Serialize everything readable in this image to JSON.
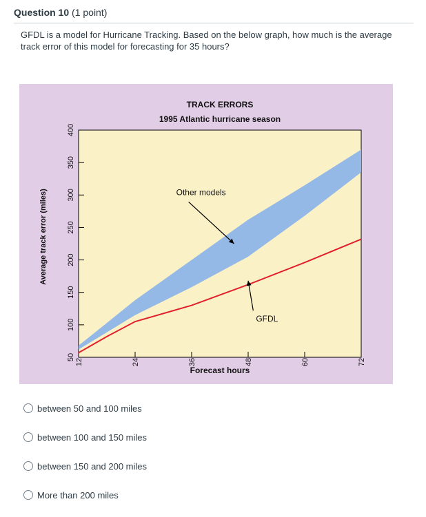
{
  "question": {
    "title": "Question 10",
    "points": "(1 point)",
    "text": "GFDL is a model for Hurricane Tracking. Based on the below graph, how much is the average track error of this model for forecasting for 35 hours?"
  },
  "options": [
    {
      "label": "between 50 and 100 miles"
    },
    {
      "label": "between 100 and 150 miles"
    },
    {
      "label": "between 150 and 200 miles"
    },
    {
      "label": "More than 200 miles"
    }
  ],
  "colors": {
    "figure_bg": "#e2cde6",
    "plot_bg": "#fbf1c7",
    "band": "#94b9e6",
    "gfdl": "#e2202c"
  },
  "chart_data": {
    "type": "line",
    "title": "TRACK ERRORS",
    "subtitle": "1995 Atlantic hurricane season",
    "xlabel": "Forecast hours",
    "ylabel": "Average track error (miles)",
    "xlim": [
      12,
      72
    ],
    "ylim": [
      50,
      400
    ],
    "x_ticks": [
      12,
      24,
      36,
      48,
      60,
      72
    ],
    "y_ticks": [
      50,
      100,
      150,
      200,
      250,
      300,
      350,
      400
    ],
    "grid": false,
    "series": [
      {
        "name": "Other models",
        "style": "band",
        "x": [
          12,
          24,
          36,
          48,
          60,
          72
        ],
        "lower": [
          62,
          115,
          158,
          205,
          268,
          335
        ],
        "upper": [
          68,
          138,
          200,
          262,
          315,
          370
        ]
      },
      {
        "name": "GFDL",
        "style": "line",
        "x": [
          12,
          18,
          24,
          36,
          48,
          60,
          72
        ],
        "y": [
          57,
          82,
          105,
          130,
          162,
          196,
          232
        ]
      }
    ],
    "annotations": [
      {
        "text": "Other models",
        "x": 38,
        "y": 300,
        "arrow_to": [
          45,
          225
        ]
      },
      {
        "text": "GFDL",
        "x": 52,
        "y": 105,
        "arrow_to": [
          48,
          168
        ]
      }
    ]
  }
}
